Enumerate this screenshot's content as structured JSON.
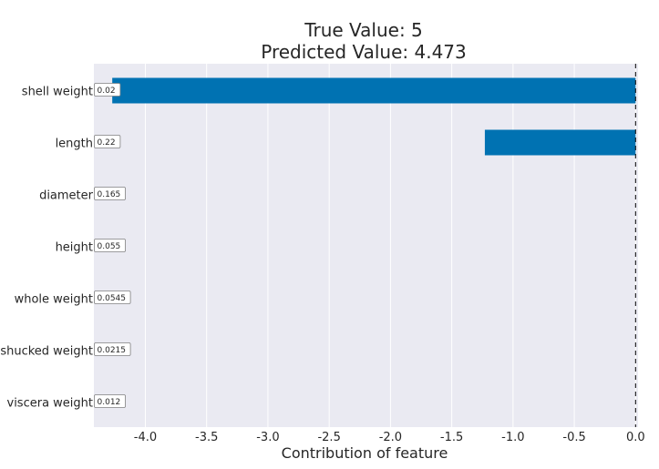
{
  "chart_data": {
    "type": "bar",
    "orientation": "horizontal",
    "title": "True Value: 5",
    "subtitle": "Predicted Value: 4.473",
    "xlabel": "Contribution of feature",
    "ylabel": "",
    "xlim": [
      -4.42,
      0.02
    ],
    "x_ticks": [
      "-4.0",
      "-3.5",
      "-3.0",
      "-2.5",
      "-2.0",
      "-1.5",
      "-1.0",
      "-0.5",
      "0.0"
    ],
    "x_tick_values": [
      -4.0,
      -3.5,
      -3.0,
      -2.5,
      -2.0,
      -1.5,
      -1.0,
      -0.5,
      0.0
    ],
    "grid": true,
    "reference_line": 0.0,
    "bar_color": "#0072b2",
    "background_color": "#eaeaf2",
    "categories": [
      "shell weight",
      "length",
      "diameter",
      "height",
      "whole weight",
      "shucked weight",
      "viscera weight"
    ],
    "values": [
      -4.27,
      -1.23,
      0.0,
      0.0,
      0.0,
      0.0,
      0.0
    ],
    "feature_values": [
      "0.02",
      "0.22",
      "0.165",
      "0.055",
      "0.0545",
      "0.0215",
      "0.012"
    ]
  }
}
